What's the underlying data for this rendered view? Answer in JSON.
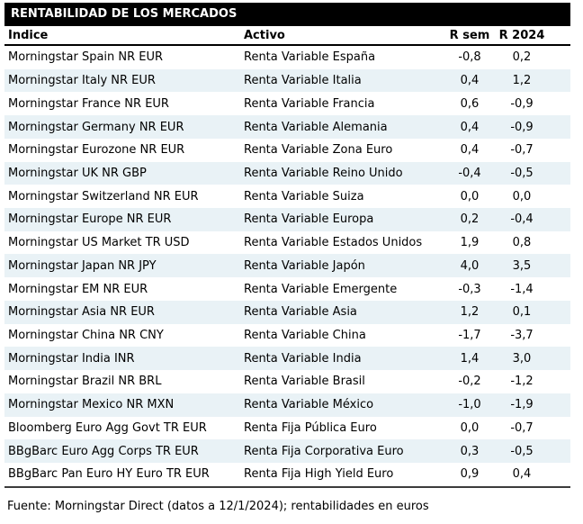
{
  "chart_data": {
    "type": "table",
    "title": "RENTABILIDAD DE LOS MERCADOS",
    "columns": [
      "Índice",
      "Activo",
      "R sem",
      "R 2024"
    ],
    "rows": [
      [
        "Morningstar Spain NR EUR",
        "Renta Variable España",
        "-0,8",
        "0,2"
      ],
      [
        "Morningstar Italy NR EUR",
        "Renta Variable Italia",
        "0,4",
        "1,2"
      ],
      [
        "Morningstar France NR EUR",
        "Renta Variable Francia",
        "0,6",
        "-0,9"
      ],
      [
        "Morningstar Germany NR EUR",
        "Renta Variable Alemania",
        "0,4",
        "-0,9"
      ],
      [
        "Morningstar Eurozone NR EUR",
        "Renta Variable Zona Euro",
        "0,4",
        "-0,7"
      ],
      [
        "Morningstar UK NR GBP",
        "Renta Variable Reino Unido",
        "-0,4",
        "-0,5"
      ],
      [
        "Morningstar Switzerland NR EUR",
        "Renta Variable Suiza",
        "0,0",
        "0,0"
      ],
      [
        "Morningstar Europe NR EUR",
        "Renta Variable Europa",
        "0,2",
        "-0,4"
      ],
      [
        "Morningstar US Market TR USD",
        "Renta Variable Estados Unidos",
        "1,9",
        "0,8"
      ],
      [
        "Morningstar Japan NR JPY",
        "Renta Variable Japón",
        "4,0",
        "3,5"
      ],
      [
        "Morningstar EM NR EUR",
        "Renta Variable Emergente",
        "-0,3",
        "-1,4"
      ],
      [
        "Morningstar Asia NR EUR",
        "Renta Variable Asia",
        "1,2",
        "0,1"
      ],
      [
        "Morningstar China NR CNY",
        "Renta Variable China",
        "-1,7",
        "-3,7"
      ],
      [
        "Morningstar India INR",
        "Renta Variable India",
        "1,4",
        "3,0"
      ],
      [
        "Morningstar Brazil NR BRL",
        "Renta Variable Brasil",
        "-0,2",
        "-1,2"
      ],
      [
        "Morningstar Mexico NR MXN",
        "Renta Variable México",
        "-1,0",
        "-1,9"
      ],
      [
        "Bloomberg Euro Agg Govt TR EUR",
        "Renta Fija Pública Euro",
        "0,0",
        "-0,7"
      ],
      [
        "BBgBarc Euro Agg Corps TR EUR",
        "Renta Fija Corporativa Euro",
        "0,3",
        "-0,5"
      ],
      [
        "BBgBarc Pan Euro HY Euro TR EUR",
        "Renta Fija High Yield Euro",
        "0,9",
        "0,4"
      ]
    ],
    "footer": "Fuente: Morningstar Direct (datos a 12/1/2024); rentabilidades en euros",
    "layout": {
      "legend": "none",
      "grid": "alternating-row-shading",
      "colors": {
        "title_bg": "#000000",
        "title_fg": "#ffffff",
        "row_alt_bg": "#e9f2f6",
        "rule": "#000000",
        "text": "#000000"
      }
    }
  }
}
